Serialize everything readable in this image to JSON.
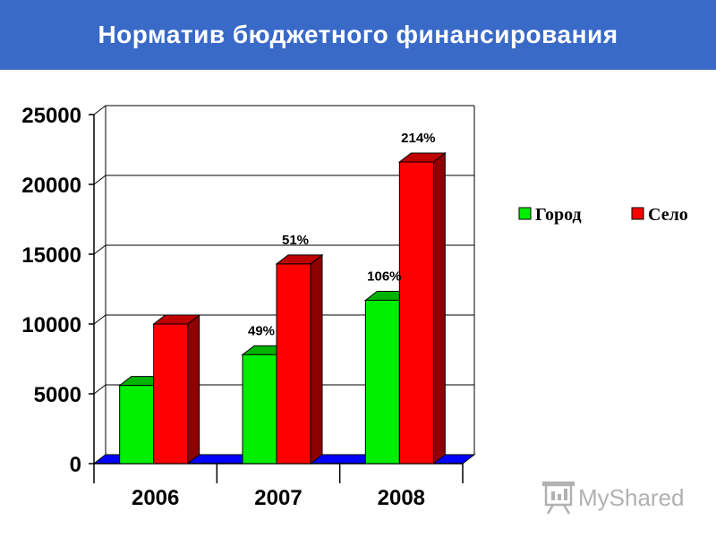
{
  "header": {
    "title": "Норматив бюджетного финансирования"
  },
  "chart_data": {
    "type": "bar",
    "style": "3d-clustered",
    "categories": [
      "2006",
      "2007",
      "2008"
    ],
    "series": [
      {
        "name": "Город",
        "color": "#00ee00",
        "values": [
          5600,
          7800,
          11700
        ],
        "labels": [
          "",
          "49%",
          "106%"
        ]
      },
      {
        "name": "Село",
        "color": "#ff0000",
        "values": [
          10000,
          14300,
          21600
        ],
        "labels": [
          "",
          "51%",
          "214%"
        ]
      }
    ],
    "ylim": [
      0,
      25000
    ],
    "yticks": [
      0,
      5000,
      10000,
      15000,
      20000,
      25000
    ],
    "grid": true,
    "floor_color": "#0000ff",
    "legend_position": "right",
    "title": "",
    "xlabel": "",
    "ylabel": ""
  },
  "watermark": {
    "text": "MyShared",
    "icon": "presentation-board-icon"
  }
}
